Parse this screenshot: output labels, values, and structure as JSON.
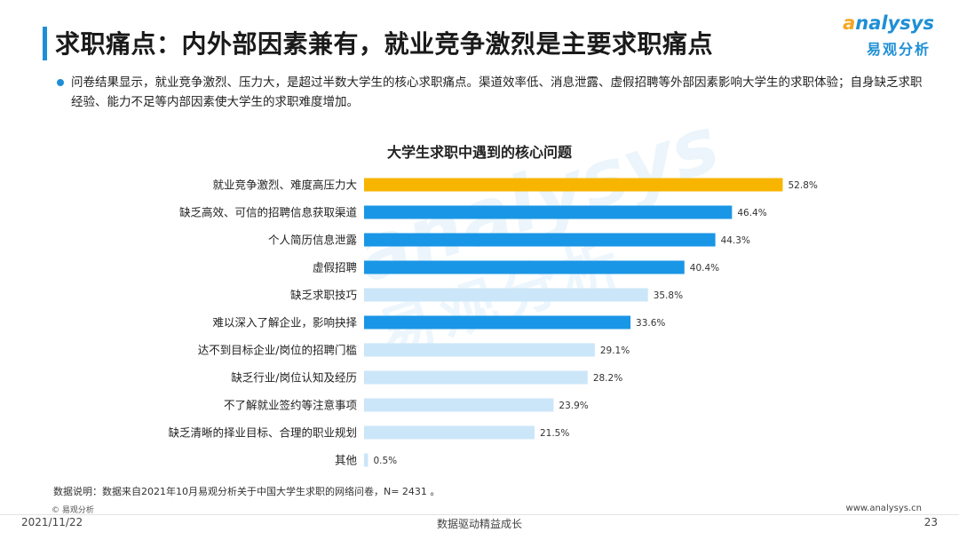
{
  "header": {
    "title": "求职痛点：内外部因素兼有，就业竞争激烈是主要求职痛点",
    "logo_en_first": "a",
    "logo_en_rest": "nalysys",
    "logo_cn": "易观分析"
  },
  "summary": "问卷结果显示，就业竞争激烈、压力大，是超过半数大学生的核心求职痛点。渠道效率低、消息泄露、虚假招聘等外部因素影响大学生的求职体验；自身缺乏求职经验、能力不足等内部因素使大学生的求职难度增加。",
  "chart_data": {
    "type": "bar",
    "orientation": "horizontal",
    "title": "大学生求职中遇到的核心问题",
    "unit": "%",
    "categories": [
      "就业竞争激烈、难度高压力大",
      "缺乏高效、可信的招聘信息获取渠道",
      "个人简历信息泄露",
      "虚假招聘",
      "缺乏求职技巧",
      "难以深入了解企业，影响抉择",
      "达不到目标企业/岗位的招聘门槛",
      "缺乏行业/岗位认知及经历",
      "不了解就业签约等注意事项",
      "缺乏清晰的择业目标、合理的职业规划",
      "其他"
    ],
    "values": [
      52.8,
      46.4,
      44.3,
      40.4,
      35.8,
      33.6,
      29.1,
      28.2,
      23.9,
      21.5,
      0.5
    ],
    "value_labels": [
      "52.8%",
      "46.4%",
      "44.3%",
      "40.4%",
      "35.8%",
      "33.6%",
      "29.1%",
      "28.2%",
      "23.9%",
      "21.5%",
      "0.5%"
    ],
    "bar_color_groups": [
      "highlight",
      "strong",
      "strong",
      "strong",
      "light",
      "strong",
      "light",
      "light",
      "light",
      "light",
      "light"
    ],
    "colors": {
      "highlight": "#f7b500",
      "strong": "#1a96e6",
      "light": "#cbe6f8"
    },
    "xlim": [
      0,
      60
    ],
    "grid": false,
    "legend": "none"
  },
  "footer": {
    "note": "数据说明：数据来自2021年10月易观分析关于中国大学生求职的网络问卷，N= 2431 。",
    "copyright": "© 易观分析",
    "date": "2021/11/22",
    "slogan": "数据驱动精益成长",
    "website": "www.analysys.cn",
    "page": "23"
  }
}
